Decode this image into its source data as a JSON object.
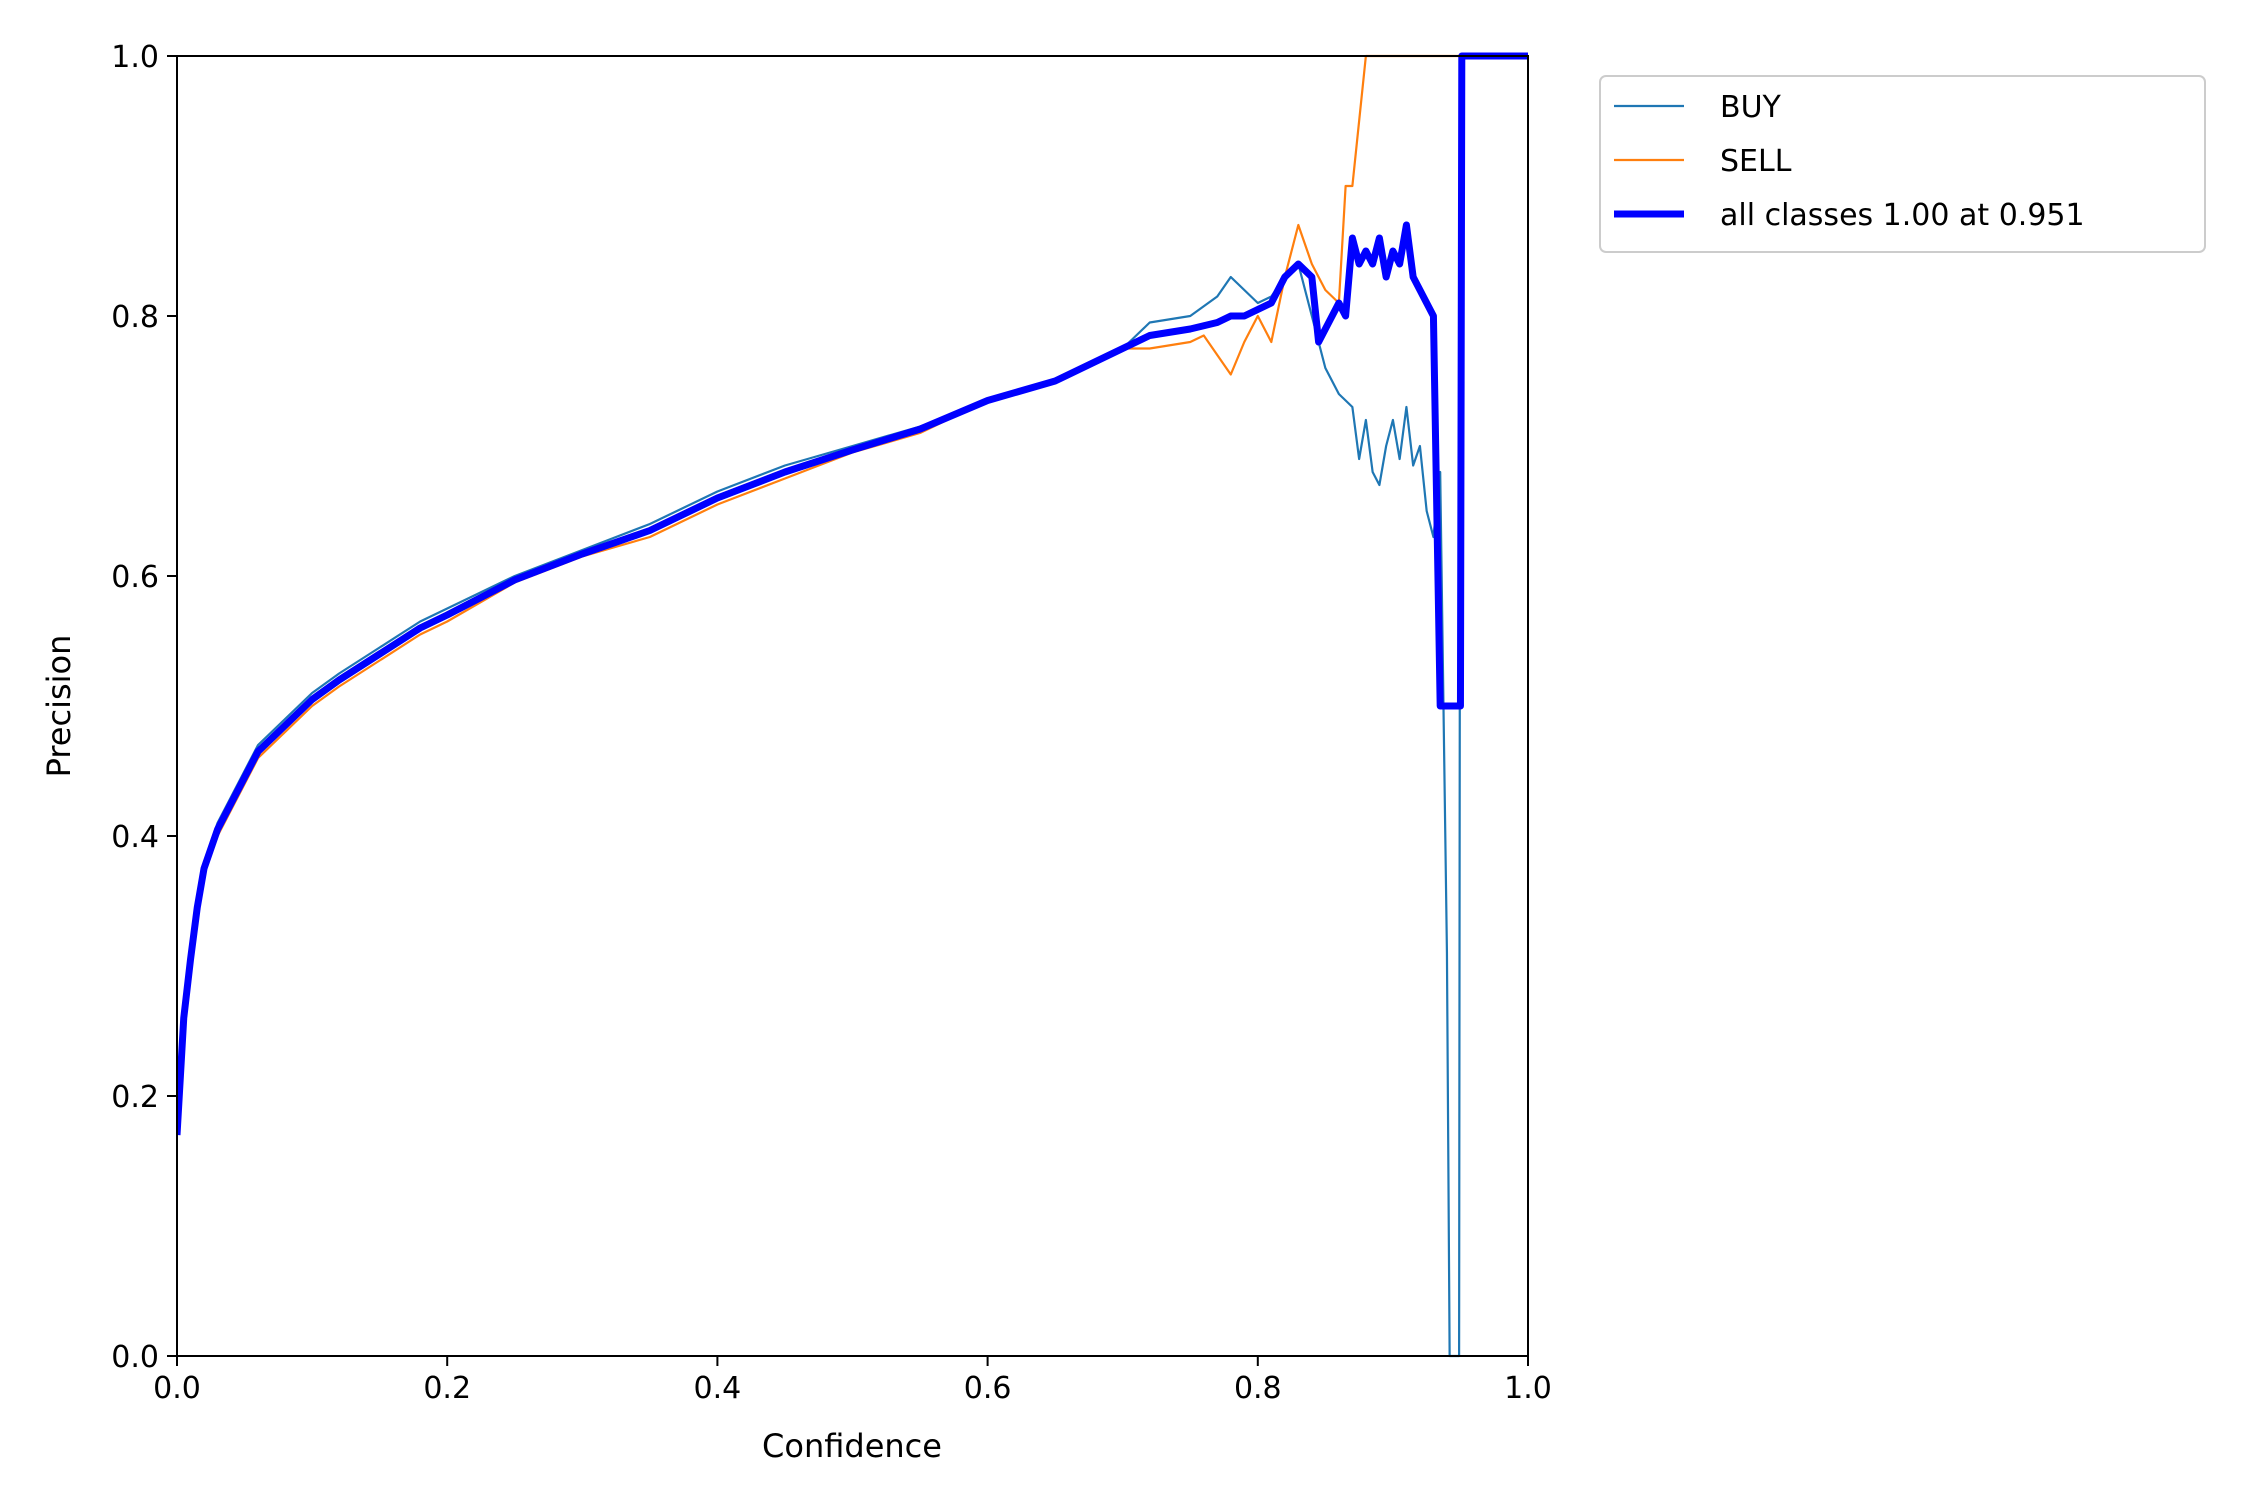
{
  "chart_data": {
    "type": "line",
    "title": "",
    "xlabel": "Confidence",
    "ylabel": "Precision",
    "xlim": [
      0,
      1
    ],
    "ylim": [
      0,
      1
    ],
    "xticks": [
      "0.0",
      "0.2",
      "0.4",
      "0.6",
      "0.8",
      "1.0"
    ],
    "yticks": [
      "0.0",
      "0.2",
      "0.4",
      "0.6",
      "0.8",
      "1.0"
    ],
    "grid": false,
    "legend_position": "outside upper right",
    "series": [
      {
        "name": "BUY",
        "color": "#1f77b4",
        "x": [
          0.0,
          0.005,
          0.01,
          0.015,
          0.02,
          0.03,
          0.04,
          0.05,
          0.06,
          0.07,
          0.08,
          0.1,
          0.12,
          0.15,
          0.18,
          0.2,
          0.25,
          0.3,
          0.35,
          0.4,
          0.45,
          0.5,
          0.55,
          0.6,
          0.65,
          0.7,
          0.72,
          0.75,
          0.77,
          0.78,
          0.79,
          0.8,
          0.81,
          0.82,
          0.83,
          0.84,
          0.85,
          0.86,
          0.87,
          0.875,
          0.88,
          0.885,
          0.89,
          0.895,
          0.9,
          0.905,
          0.91,
          0.915,
          0.92,
          0.925,
          0.93,
          0.935,
          0.94,
          0.942,
          0.945,
          0.948,
          0.949,
          0.95,
          1.0
        ],
        "y": [
          0.2,
          0.27,
          0.31,
          0.35,
          0.38,
          0.41,
          0.43,
          0.45,
          0.47,
          0.48,
          0.49,
          0.51,
          0.525,
          0.545,
          0.565,
          0.575,
          0.6,
          0.62,
          0.64,
          0.665,
          0.685,
          0.7,
          0.715,
          0.735,
          0.75,
          0.775,
          0.795,
          0.8,
          0.815,
          0.83,
          0.82,
          0.81,
          0.815,
          0.83,
          0.84,
          0.8,
          0.76,
          0.74,
          0.73,
          0.69,
          0.72,
          0.68,
          0.67,
          0.7,
          0.72,
          0.69,
          0.73,
          0.685,
          0.7,
          0.65,
          0.63,
          0.68,
          0.31,
          0.0,
          0.0,
          0.0,
          0.0,
          1.0,
          1.0
        ]
      },
      {
        "name": "SELL",
        "color": "#ff7f0e",
        "x": [
          0.0,
          0.005,
          0.01,
          0.015,
          0.02,
          0.03,
          0.04,
          0.05,
          0.06,
          0.07,
          0.08,
          0.1,
          0.12,
          0.15,
          0.18,
          0.2,
          0.25,
          0.3,
          0.35,
          0.4,
          0.45,
          0.5,
          0.55,
          0.6,
          0.65,
          0.7,
          0.72,
          0.75,
          0.76,
          0.77,
          0.78,
          0.79,
          0.8,
          0.81,
          0.82,
          0.83,
          0.84,
          0.85,
          0.86,
          0.865,
          0.87,
          0.875,
          0.88,
          1.0
        ],
        "y": [
          0.17,
          0.25,
          0.3,
          0.34,
          0.37,
          0.4,
          0.42,
          0.44,
          0.46,
          0.47,
          0.48,
          0.5,
          0.515,
          0.535,
          0.555,
          0.565,
          0.595,
          0.615,
          0.63,
          0.655,
          0.675,
          0.695,
          0.71,
          0.735,
          0.75,
          0.775,
          0.775,
          0.78,
          0.785,
          0.77,
          0.755,
          0.78,
          0.8,
          0.78,
          0.83,
          0.87,
          0.84,
          0.82,
          0.81,
          0.9,
          0.9,
          0.95,
          1.0,
          1.0
        ]
      },
      {
        "name": "all classes 1.00 at 0.951",
        "color": "#0000ff",
        "x": [
          0.0,
          0.005,
          0.01,
          0.015,
          0.02,
          0.03,
          0.04,
          0.05,
          0.06,
          0.07,
          0.08,
          0.1,
          0.12,
          0.15,
          0.18,
          0.2,
          0.25,
          0.3,
          0.35,
          0.4,
          0.45,
          0.5,
          0.55,
          0.6,
          0.65,
          0.7,
          0.72,
          0.75,
          0.77,
          0.78,
          0.79,
          0.8,
          0.81,
          0.82,
          0.83,
          0.84,
          0.845,
          0.85,
          0.855,
          0.86,
          0.865,
          0.87,
          0.875,
          0.88,
          0.885,
          0.89,
          0.895,
          0.9,
          0.905,
          0.91,
          0.915,
          0.92,
          0.925,
          0.93,
          0.935,
          0.94,
          0.945,
          0.95,
          0.951,
          1.0
        ],
        "y": [
          0.17,
          0.26,
          0.305,
          0.345,
          0.375,
          0.405,
          0.425,
          0.445,
          0.465,
          0.475,
          0.485,
          0.505,
          0.52,
          0.54,
          0.56,
          0.57,
          0.597,
          0.617,
          0.635,
          0.66,
          0.68,
          0.697,
          0.713,
          0.735,
          0.75,
          0.775,
          0.785,
          0.79,
          0.795,
          0.8,
          0.8,
          0.805,
          0.81,
          0.83,
          0.84,
          0.83,
          0.78,
          0.79,
          0.8,
          0.81,
          0.8,
          0.86,
          0.84,
          0.85,
          0.84,
          0.86,
          0.83,
          0.85,
          0.84,
          0.87,
          0.83,
          0.82,
          0.81,
          0.8,
          0.5,
          0.5,
          0.5,
          0.5,
          1.0,
          1.0
        ]
      }
    ]
  }
}
